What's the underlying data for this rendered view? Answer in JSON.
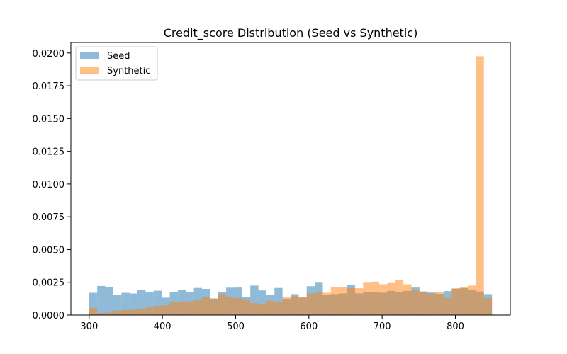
{
  "chart_data": {
    "type": "bar",
    "title": "Credit_score Distribution (Seed vs Synthetic)",
    "xlabel": "",
    "ylabel": "",
    "xlim": [
      275,
      875
    ],
    "ylim": [
      0,
      0.0208
    ],
    "x_ticks": [
      300,
      400,
      500,
      600,
      700,
      800
    ],
    "y_ticks": [
      0.0,
      0.0025,
      0.005,
      0.0075,
      0.01,
      0.0125,
      0.015,
      0.0175,
      0.02
    ],
    "y_tick_labels": [
      "0.0000",
      "0.0025",
      "0.0050",
      "0.0075",
      "0.0100",
      "0.0125",
      "0.0150",
      "0.0175",
      "0.0200"
    ],
    "bins": {
      "start": 300,
      "end": 850,
      "count": 50
    },
    "grid": false,
    "legend_position": "top-left",
    "series": [
      {
        "name": "Seed",
        "color": "#1f77b4",
        "alpha": 0.5,
        "values": [
          0.0017,
          0.00222,
          0.00215,
          0.00155,
          0.0017,
          0.00165,
          0.00193,
          0.00173,
          0.00186,
          0.00133,
          0.00173,
          0.00193,
          0.00173,
          0.00207,
          0.002,
          0.00127,
          0.00176,
          0.00209,
          0.0021,
          0.0014,
          0.00225,
          0.00188,
          0.00153,
          0.00207,
          0.0012,
          0.0016,
          0.00133,
          0.0022,
          0.00247,
          0.00155,
          0.0016,
          0.00165,
          0.0023,
          0.00165,
          0.00175,
          0.00175,
          0.0017,
          0.00185,
          0.00175,
          0.00185,
          0.0021,
          0.0018,
          0.00172,
          0.00162,
          0.00183,
          0.002,
          0.00205,
          0.0019,
          0.0018,
          0.0016
        ]
      },
      {
        "name": "Synthetic",
        "color": "#ff7f0e",
        "alpha": 0.5,
        "values": [
          0.00055,
          0.00015,
          0.0002,
          0.00035,
          0.0004,
          0.0004,
          0.0005,
          0.00058,
          0.0007,
          0.00075,
          0.001,
          0.00105,
          0.00105,
          0.00113,
          0.0014,
          0.0012,
          0.0016,
          0.0014,
          0.0013,
          0.00115,
          0.00092,
          0.00085,
          0.0011,
          0.001,
          0.0014,
          0.00145,
          0.0014,
          0.00165,
          0.00175,
          0.0017,
          0.00212,
          0.00212,
          0.00205,
          0.00205,
          0.00247,
          0.00255,
          0.00235,
          0.00245,
          0.00265,
          0.00235,
          0.0019,
          0.0018,
          0.00165,
          0.00173,
          0.0013,
          0.00205,
          0.00212,
          0.00225,
          0.01975,
          0.0013
        ]
      }
    ]
  }
}
